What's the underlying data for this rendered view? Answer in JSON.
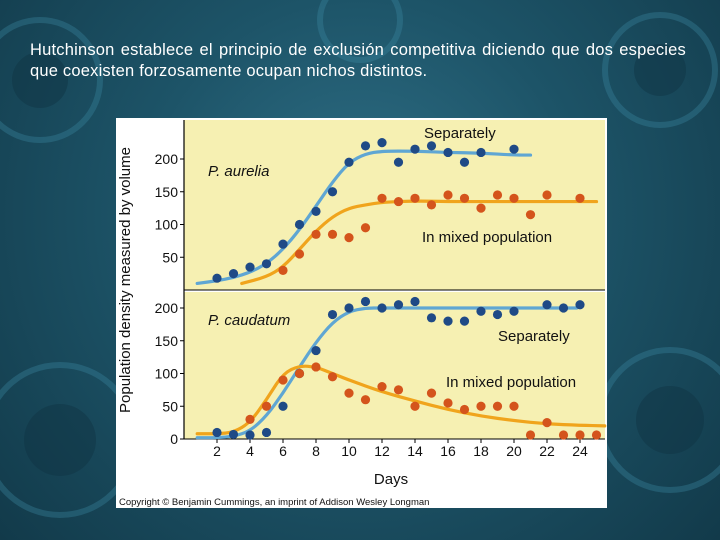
{
  "slide": {
    "text": "Hutchinson establece el principio de exclusión competitiva diciendo que dos especies que coexisten forzosamente ocupan nichos distintos."
  },
  "colors": {
    "panel_bg": "#f6f0b2",
    "blue": "#5fa6d3",
    "blue_dots": "#1f4a86",
    "orange": "#f0a41c",
    "orange_dots": "#d4541c",
    "slide_bg": "#1d5468"
  },
  "chart_data": [
    {
      "type": "scatter",
      "title": "P. aurelia",
      "xlabel": "Days",
      "ylabel": "Population density measured by volume",
      "xticks": [
        "2",
        "4",
        "6",
        "8",
        "10",
        "12",
        "14",
        "16",
        "18",
        "20",
        "22",
        "24"
      ],
      "yticks": [
        "50",
        "100",
        "150",
        "200"
      ],
      "xlim": [
        0,
        25.5
      ],
      "ylim": [
        0,
        230
      ],
      "series": [
        {
          "name": "Separately",
          "color": "#5fa6d3",
          "dot_color": "#1f4a86",
          "points": [
            [
              2,
              18
            ],
            [
              3,
              25
            ],
            [
              4,
              35
            ],
            [
              5,
              40
            ],
            [
              6,
              70
            ],
            [
              7,
              100
            ],
            [
              8,
              120
            ],
            [
              9,
              150
            ],
            [
              10,
              195
            ],
            [
              11,
              220
            ],
            [
              12,
              225
            ],
            [
              13,
              195
            ],
            [
              14,
              215
            ],
            [
              15,
              220
            ],
            [
              16,
              210
            ],
            [
              17,
              195
            ],
            [
              18,
              210
            ],
            [
              20,
              215
            ]
          ],
          "curve": [
            [
              0.8,
              10
            ],
            [
              2,
              14
            ],
            [
              3,
              19
            ],
            [
              4,
              27
            ],
            [
              5,
              40
            ],
            [
              6,
              62
            ],
            [
              7,
              92
            ],
            [
              8,
              128
            ],
            [
              9,
              165
            ],
            [
              10,
              195
            ],
            [
              11,
              208
            ],
            [
              12,
              212
            ],
            [
              14,
              212
            ],
            [
              16,
              210
            ],
            [
              18,
              209
            ],
            [
              20,
              206
            ],
            [
              21,
              206
            ]
          ]
        },
        {
          "name": "In mixed population",
          "color": "#f0a41c",
          "dot_color": "#d4541c",
          "points": [
            [
              6,
              30
            ],
            [
              7,
              55
            ],
            [
              8,
              85
            ],
            [
              9,
              85
            ],
            [
              10,
              80
            ],
            [
              11,
              95
            ],
            [
              12,
              140
            ],
            [
              13,
              135
            ],
            [
              14,
              140
            ],
            [
              15,
              130
            ],
            [
              16,
              145
            ],
            [
              17,
              140
            ],
            [
              18,
              125
            ],
            [
              19,
              145
            ],
            [
              20,
              140
            ],
            [
              21,
              115
            ],
            [
              22,
              145
            ],
            [
              24,
              140
            ]
          ],
          "curve": [
            [
              3.5,
              10
            ],
            [
              5,
              20
            ],
            [
              6,
              35
            ],
            [
              7,
              62
            ],
            [
              8,
              90
            ],
            [
              9,
              112
            ],
            [
              10,
              125
            ],
            [
              11,
              130
            ],
            [
              12,
              134
            ],
            [
              14,
              136
            ],
            [
              16,
              135
            ],
            [
              18,
              135
            ],
            [
              20,
              135
            ],
            [
              22,
              135
            ],
            [
              24,
              135
            ],
            [
              25,
              135
            ]
          ]
        }
      ]
    },
    {
      "type": "scatter",
      "title": "P. caudatum",
      "xlabel": "Days",
      "ylabel": "Population density measured by volume",
      "xticks": [
        "2",
        "4",
        "6",
        "8",
        "10",
        "12",
        "14",
        "16",
        "18",
        "20",
        "22",
        "24"
      ],
      "yticks": [
        "0",
        "50",
        "100",
        "150",
        "200"
      ],
      "xlim": [
        0,
        25.5
      ],
      "ylim": [
        0,
        230
      ],
      "series": [
        {
          "name": "Separately",
          "color": "#5fa6d3",
          "dot_color": "#1f4a86",
          "points": [
            [
              2,
              10
            ],
            [
              3,
              7
            ],
            [
              4,
              5
            ],
            [
              5,
              10
            ],
            [
              6,
              50
            ],
            [
              7,
              100
            ],
            [
              8,
              135
            ],
            [
              9,
              190
            ],
            [
              10,
              200
            ],
            [
              11,
              210
            ],
            [
              12,
              200
            ],
            [
              13,
              205
            ],
            [
              14,
              210
            ],
            [
              15,
              185
            ],
            [
              16,
              180
            ],
            [
              17,
              180
            ],
            [
              18,
              195
            ],
            [
              19,
              190
            ],
            [
              20,
              195
            ],
            [
              22,
              205
            ],
            [
              23,
              200
            ],
            [
              24,
              205
            ]
          ],
          "curve": [
            [
              0.8,
              2
            ],
            [
              2,
              2
            ],
            [
              3,
              4
            ],
            [
              4,
              12
            ],
            [
              5,
              35
            ],
            [
              6,
              70
            ],
            [
              7,
              110
            ],
            [
              8,
              148
            ],
            [
              9,
              178
            ],
            [
              10,
              195
            ],
            [
              11,
              200
            ],
            [
              12,
              200
            ],
            [
              14,
              200
            ],
            [
              16,
              200
            ],
            [
              18,
              200
            ],
            [
              20,
              200
            ],
            [
              22,
              200
            ],
            [
              23.8,
              200
            ]
          ]
        },
        {
          "name": "In mixed population",
          "color": "#f0a41c",
          "dot_color": "#d4541c",
          "points": [
            [
              4,
              30
            ],
            [
              5,
              50
            ],
            [
              6,
              90
            ],
            [
              7,
              100
            ],
            [
              8,
              110
            ],
            [
              9,
              95
            ],
            [
              10,
              70
            ],
            [
              11,
              60
            ],
            [
              12,
              80
            ],
            [
              13,
              75
            ],
            [
              14,
              50
            ],
            [
              15,
              70
            ],
            [
              16,
              55
            ],
            [
              17,
              45
            ],
            [
              18,
              50
            ],
            [
              19,
              50
            ],
            [
              20,
              50
            ],
            [
              21,
              5
            ],
            [
              22,
              25
            ],
            [
              23,
              5
            ],
            [
              24,
              5
            ],
            [
              25,
              5
            ],
            [
              26,
              0
            ]
          ],
          "curve": [
            [
              0.8,
              8
            ],
            [
              2,
              8
            ],
            [
              3,
              10
            ],
            [
              4,
              25
            ],
            [
              5,
              60
            ],
            [
              6,
              100
            ],
            [
              7,
              112
            ],
            [
              8,
              110
            ],
            [
              9,
              100
            ],
            [
              10,
              90
            ],
            [
              12,
              72
            ],
            [
              14,
              58
            ],
            [
              16,
              45
            ],
            [
              18,
              35
            ],
            [
              20,
              28
            ],
            [
              22,
              23
            ],
            [
              24,
              21
            ],
            [
              25.5,
              20
            ]
          ]
        }
      ]
    }
  ],
  "labels": {
    "panel1_title": "P. aurelia",
    "panel1_series1": "Separately",
    "panel1_series2": "In mixed population",
    "panel2_title": "P. caudatum",
    "panel2_series1": "Separately",
    "panel2_series2": "In mixed population",
    "xlabel": "Days",
    "ylabel": "Population density measured by volume",
    "copyright": "Copyright © Benjamin Cummings, an imprint of Addison Wesley Longman"
  }
}
